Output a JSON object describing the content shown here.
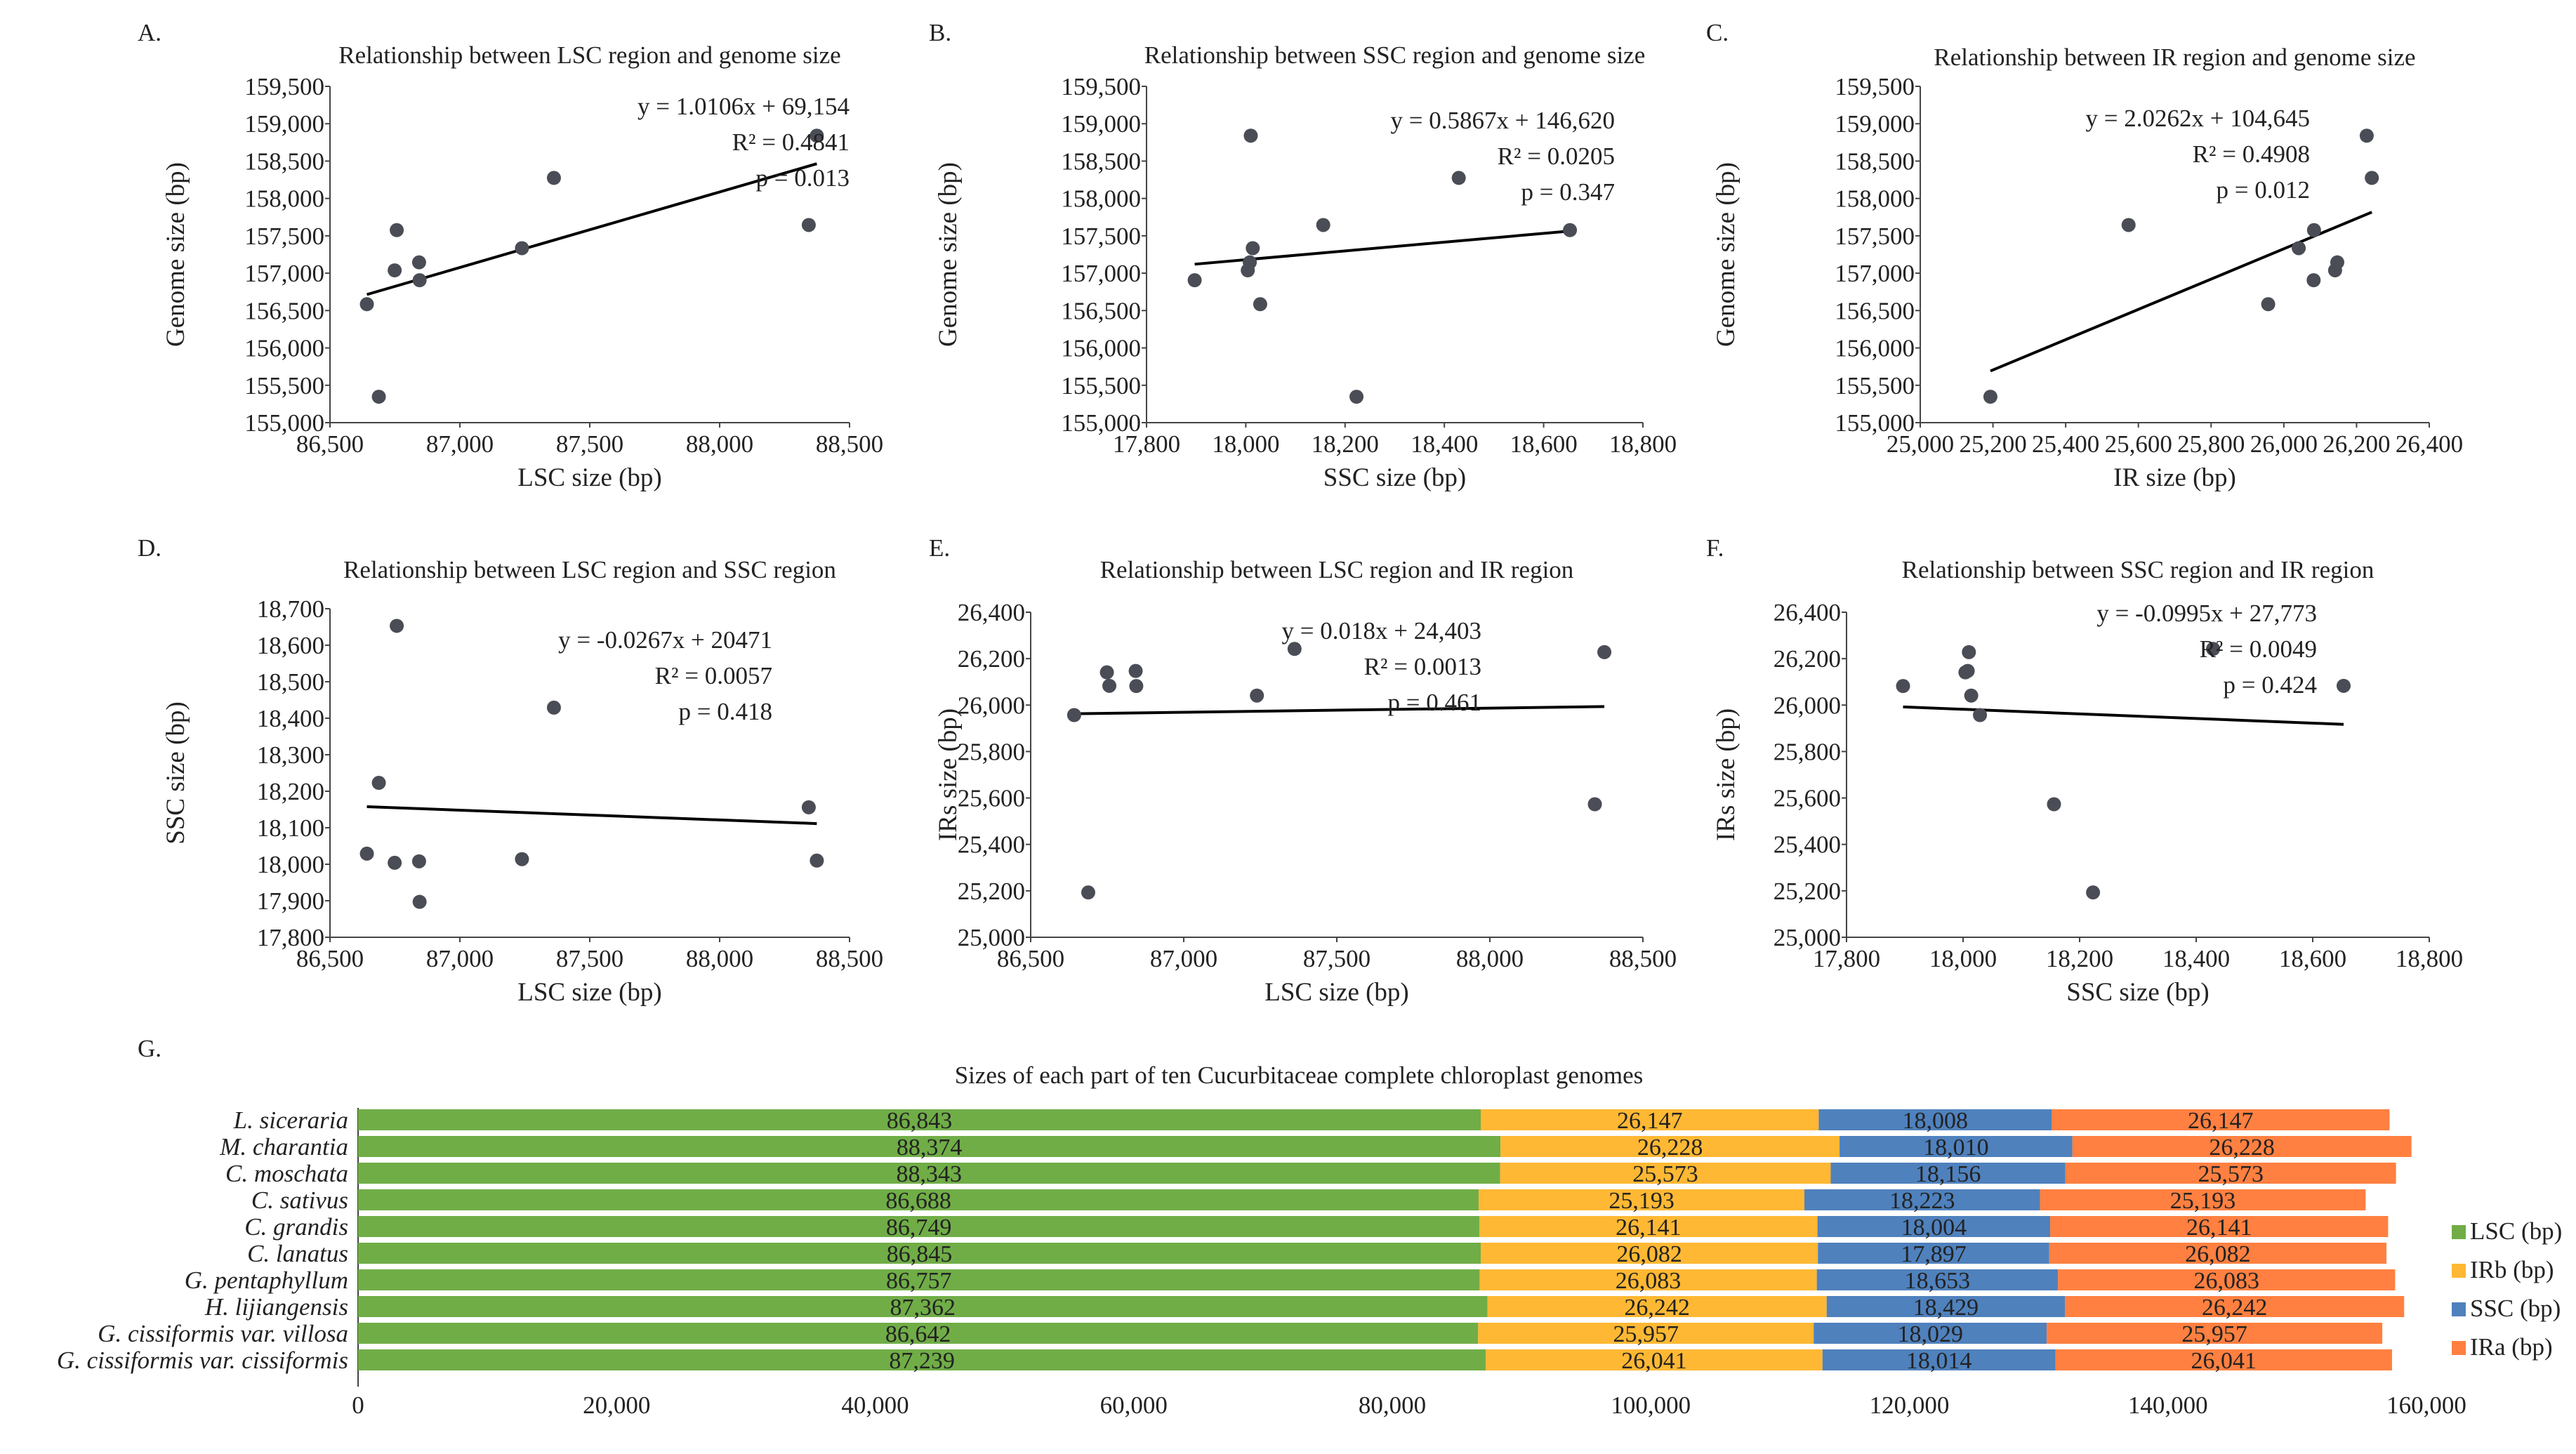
{
  "colors": {
    "point": "#4a4d55",
    "trend": "#000000",
    "axis": "#444444",
    "lsc": "#70ad47",
    "irb": "#ffb833",
    "ssc": "#4f81bd",
    "ira": "#ff8040"
  },
  "chart_data": [
    {
      "type": "scatter",
      "panel_label": "A.",
      "title": "Relationship  between  LSC region  and  genome  size",
      "xlabel": "LSC size (bp)",
      "ylabel": "Genome  size  (bp)",
      "xlim": [
        86500,
        88500
      ],
      "ylim": [
        155000,
        159500
      ],
      "x_ticks": [
        "86,500",
        "87,000",
        "87,500",
        "88,000",
        "88,500"
      ],
      "y_ticks": [
        "155,000",
        "155,500",
        "156,000",
        "156,500",
        "157,000",
        "157,500",
        "158,000",
        "158,500",
        "159,000",
        "159,500"
      ],
      "points": [
        [
          86843,
          157145
        ],
        [
          88374,
          158840
        ],
        [
          88343,
          157645
        ],
        [
          86688,
          155347
        ],
        [
          86749,
          157038
        ],
        [
          86845,
          156906
        ],
        [
          86757,
          157576
        ],
        [
          87362,
          158275
        ],
        [
          86642,
          156585
        ],
        [
          87239,
          157335
        ]
      ],
      "trendline": {
        "x": [
          86642,
          88374
        ],
        "slope": 1.0106,
        "intercept": 69154
      },
      "annotations": [
        "y = 1.0106x + 69,154",
        "R² = 0.4841",
        "p = 0.013"
      ]
    },
    {
      "type": "scatter",
      "panel_label": "B.",
      "title": "Relationship  between  SSC region  and  genome  size",
      "xlabel": "SSC size (bp)",
      "ylabel": "Genome  size  (bp)",
      "xlim": [
        17800,
        18800
      ],
      "ylim": [
        155000,
        159500
      ],
      "x_ticks": [
        "17,800",
        "18,000",
        "18,200",
        "18,400",
        "18,600",
        "18,800"
      ],
      "y_ticks": [
        "155,000",
        "155,500",
        "156,000",
        "156,500",
        "157,000",
        "157,500",
        "158,000",
        "158,500",
        "159,000",
        "159,500"
      ],
      "points": [
        [
          18008,
          157145
        ],
        [
          18010,
          158840
        ],
        [
          18156,
          157645
        ],
        [
          18223,
          155347
        ],
        [
          18004,
          157038
        ],
        [
          17897,
          156906
        ],
        [
          18653,
          157576
        ],
        [
          18429,
          158275
        ],
        [
          18029,
          156585
        ],
        [
          18014,
          157335
        ]
      ],
      "trendline": {
        "x": [
          17897,
          18653
        ],
        "slope": 0.5867,
        "intercept": 146620
      },
      "annotations": [
        "y = 0.5867x + 146,620",
        "R² = 0.0205",
        "p = 0.347"
      ]
    },
    {
      "type": "scatter",
      "panel_label": "C.",
      "title": "Relationship  between  IR region  and  genome  size",
      "xlabel": "IR size (bp)",
      "ylabel": "Genome  size  (bp)",
      "xlim": [
        25000,
        26400
      ],
      "ylim": [
        155000,
        159500
      ],
      "x_ticks": [
        "25,000",
        "25,200",
        "25,400",
        "25,600",
        "25,800",
        "26,000",
        "26,200",
        "26,400"
      ],
      "y_ticks": [
        "155,000",
        "155,500",
        "156,000",
        "156,500",
        "157,000",
        "157,500",
        "158,000",
        "158,500",
        "159,000",
        "159,500"
      ],
      "points": [
        [
          26147,
          157145
        ],
        [
          26228,
          158840
        ],
        [
          25573,
          157645
        ],
        [
          25193,
          155347
        ],
        [
          26141,
          157038
        ],
        [
          26082,
          156906
        ],
        [
          26083,
          157576
        ],
        [
          26242,
          158275
        ],
        [
          25957,
          156585
        ],
        [
          26041,
          157335
        ]
      ],
      "trendline": {
        "x": [
          25193,
          26242
        ],
        "slope": 2.0262,
        "intercept": 104645
      },
      "annotations": [
        "y = 2.0262x + 104,645",
        "R² = 0.4908",
        "p = 0.012"
      ]
    },
    {
      "type": "scatter",
      "panel_label": "D.",
      "title": "Relationship  between  LSC region  and  SSC region",
      "xlabel": "LSC size (bp)",
      "ylabel": "SSC size (bp)",
      "xlim": [
        86500,
        88500
      ],
      "ylim": [
        17800,
        18700
      ],
      "x_ticks": [
        "86,500",
        "87,000",
        "87,500",
        "88,000",
        "88,500"
      ],
      "y_ticks": [
        "17,800",
        "17,900",
        "18,000",
        "18,100",
        "18,200",
        "18,300",
        "18,400",
        "18,500",
        "18,600",
        "18,700"
      ],
      "points": [
        [
          86843,
          18008
        ],
        [
          88374,
          18010
        ],
        [
          88343,
          18156
        ],
        [
          86688,
          18223
        ],
        [
          86749,
          18004
        ],
        [
          86845,
          17897
        ],
        [
          86757,
          18653
        ],
        [
          87362,
          18429
        ],
        [
          86642,
          18029
        ],
        [
          87239,
          18014
        ]
      ],
      "trendline": {
        "x": [
          86642,
          88374
        ],
        "slope": -0.0267,
        "intercept": 20471
      },
      "annotations": [
        "y = -0.0267x + 20471",
        "R² = 0.0057",
        "p = 0.418"
      ]
    },
    {
      "type": "scatter",
      "panel_label": "E.",
      "title": "Relationship  between  LSC region  and  IR region",
      "xlabel": "LSC size (bp)",
      "ylabel": "IRs size (bp)",
      "xlim": [
        86500,
        88500
      ],
      "ylim": [
        25000,
        26400
      ],
      "x_ticks": [
        "86,500",
        "87,000",
        "87,500",
        "88,000",
        "88,500"
      ],
      "y_ticks": [
        "25,000",
        "25,200",
        "25,400",
        "25,600",
        "25,800",
        "26,000",
        "26,200",
        "26,400"
      ],
      "points": [
        [
          86843,
          26147
        ],
        [
          88374,
          26228
        ],
        [
          88343,
          25573
        ],
        [
          86688,
          25193
        ],
        [
          86749,
          26141
        ],
        [
          86845,
          26082
        ],
        [
          86757,
          26083
        ],
        [
          87362,
          26242
        ],
        [
          86642,
          25957
        ],
        [
          87239,
          26041
        ]
      ],
      "trendline": {
        "x": [
          86642,
          88374
        ],
        "slope": 0.018,
        "intercept": 24403
      },
      "annotations": [
        "y = 0.018x + 24,403",
        "R² = 0.0013",
        "p = 0.461"
      ]
    },
    {
      "type": "scatter",
      "panel_label": "F.",
      "title": "Relationship  between  SSC region  and  IR region",
      "xlabel": "SSC size (bp)",
      "ylabel": "IRs size (bp)",
      "xlim": [
        17800,
        18800
      ],
      "ylim": [
        25000,
        26400
      ],
      "x_ticks": [
        "17,800",
        "18,000",
        "18,200",
        "18,400",
        "18,600",
        "18,800"
      ],
      "y_ticks": [
        "25,000",
        "25,200",
        "25,400",
        "25,600",
        "25,800",
        "26,000",
        "26,200",
        "26,400"
      ],
      "points": [
        [
          18008,
          26147
        ],
        [
          18010,
          26228
        ],
        [
          18156,
          25573
        ],
        [
          18223,
          25193
        ],
        [
          18004,
          26141
        ],
        [
          17897,
          26082
        ],
        [
          18653,
          26083
        ],
        [
          18429,
          26242
        ],
        [
          18029,
          25957
        ],
        [
          18014,
          26041
        ]
      ],
      "trendline": {
        "x": [
          17897,
          18653
        ],
        "slope": -0.0995,
        "intercept": 27773
      },
      "annotations": [
        "y = -0.0995x + 27,773",
        "R² = 0.0049",
        "p = 0.424"
      ]
    },
    {
      "type": "bar",
      "stacked": true,
      "orientation": "horizontal",
      "panel_label": "G.",
      "title": "Sizes of each part of ten Cucurbitaceae complete chloroplast genomes",
      "xlim": [
        0,
        160000
      ],
      "x_ticks": [
        "0",
        "20,000",
        "40,000",
        "60,000",
        "80,000",
        "100,000",
        "120,000",
        "140,000",
        "160,000"
      ],
      "categories": [
        "L. siceraria",
        "M. charantia",
        "C. moschata",
        "C. sativus",
        "C. grandis",
        "C. lanatus",
        "G. pentaphyllum",
        "H. lijiangensis",
        "G. cissiformis var. villosa",
        "G. cissiformis  var. cissiformis"
      ],
      "series": [
        {
          "name": "LSC (bp)",
          "values": [
            86843,
            88374,
            88343,
            86688,
            86749,
            86845,
            86757,
            87362,
            86642,
            87239
          ],
          "labels": [
            "86,843",
            "88,374",
            "88,343",
            "86,688",
            "86,749",
            "86,845",
            "86,757",
            "87,362",
            "86,642",
            "87,239"
          ]
        },
        {
          "name": "IRb (bp)",
          "values": [
            26147,
            26228,
            25573,
            25193,
            26141,
            26082,
            26083,
            26242,
            25957,
            26041
          ],
          "labels": [
            "26,147",
            "26,228",
            "25,573",
            "25,193",
            "26,141",
            "26,082",
            "26,083",
            "26,242",
            "25,957",
            "26,041"
          ]
        },
        {
          "name": "SSC (bp)",
          "values": [
            18008,
            18010,
            18156,
            18223,
            18004,
            17897,
            18653,
            18429,
            18029,
            18014
          ],
          "labels": [
            "18,008",
            "18,010",
            "18,156",
            "18,223",
            "18,004",
            "17,897",
            "18,653",
            "18,429",
            "18,029",
            "18,014"
          ]
        },
        {
          "name": "IRa (bp)",
          "values": [
            26147,
            26228,
            25573,
            25193,
            26141,
            26082,
            26083,
            26242,
            25957,
            26041
          ],
          "labels": [
            "26,147",
            "26,228",
            "25,573",
            "25,193",
            "26,141",
            "26,082",
            "26,083",
            "26,242",
            "25,957",
            "26,041"
          ]
        }
      ],
      "legend_position": "right"
    }
  ]
}
